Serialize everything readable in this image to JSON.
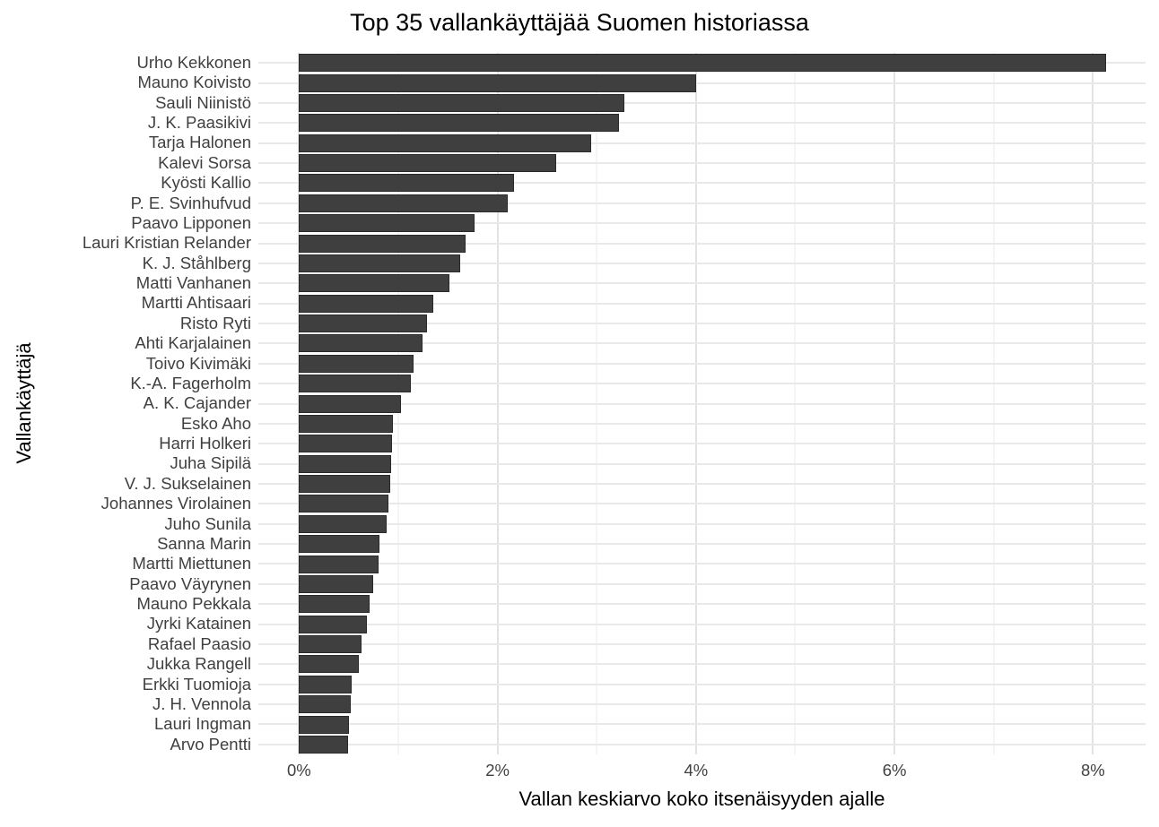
{
  "page": {
    "background": "#FFFFFF"
  },
  "chart_data": {
    "type": "bar",
    "orientation": "horizontal",
    "title": "Top 35 vallankäyttäjää Suomen historiassa",
    "xlabel": "Vallan keskiarvo koko itsenäisyyden ajalle",
    "ylabel": "Vallankäyttäjä",
    "unit": "%",
    "categories": [
      "Urho Kekkonen",
      "Mauno Koivisto",
      "Sauli Niinistö",
      "J. K. Paasikivi",
      "Tarja Halonen",
      "Kalevi Sorsa",
      "Kyösti Kallio",
      "P. E. Svinhufvud",
      "Paavo Lipponen",
      "Lauri Kristian Relander",
      "K. J. Ståhlberg",
      "Matti Vanhanen",
      "Martti Ahtisaari",
      "Risto Ryti",
      "Ahti Karjalainen",
      "Toivo Kivimäki",
      "K.-A. Fagerholm",
      "A. K. Cajander",
      "Esko Aho",
      "Harri Holkeri",
      "Juha Sipilä",
      "V. J. Sukselainen",
      "Johannes Virolainen",
      "Juho Sunila",
      "Sanna Marin",
      "Martti Miettunen",
      "Paavo Väyrynen",
      "Mauno Pekkala",
      "Jyrki Katainen",
      "Rafael Paasio",
      "Jukka Rangell",
      "Erkki Tuomioja",
      "J. H. Vennola",
      "Lauri Ingman",
      "Arvo Pentti"
    ],
    "values": [
      8.13,
      4.0,
      3.28,
      3.22,
      2.94,
      2.59,
      2.17,
      2.1,
      1.77,
      1.68,
      1.62,
      1.52,
      1.35,
      1.29,
      1.24,
      1.15,
      1.13,
      1.03,
      0.95,
      0.94,
      0.93,
      0.92,
      0.9,
      0.88,
      0.81,
      0.8,
      0.75,
      0.71,
      0.68,
      0.63,
      0.6,
      0.53,
      0.52,
      0.5,
      0.49
    ],
    "x_domain": [
      -0.41,
      8.53
    ],
    "x_major_ticks": [
      0,
      2,
      4,
      6,
      8
    ],
    "x_tick_labels": [
      "0%",
      "2%",
      "4%",
      "6%",
      "8%"
    ],
    "x_minor_ticks": [
      1,
      3,
      5,
      7
    ],
    "grid": true,
    "legend": false,
    "colors": {
      "bar_fill": "#3F3F3F",
      "bar_border": "#2A2A2A",
      "grid_major": "#E2E2E2",
      "grid_minor": "#EBEBEB",
      "row_grid": "#E9E9E9",
      "axis_text": "#404040",
      "title_text": "#000000"
    }
  }
}
